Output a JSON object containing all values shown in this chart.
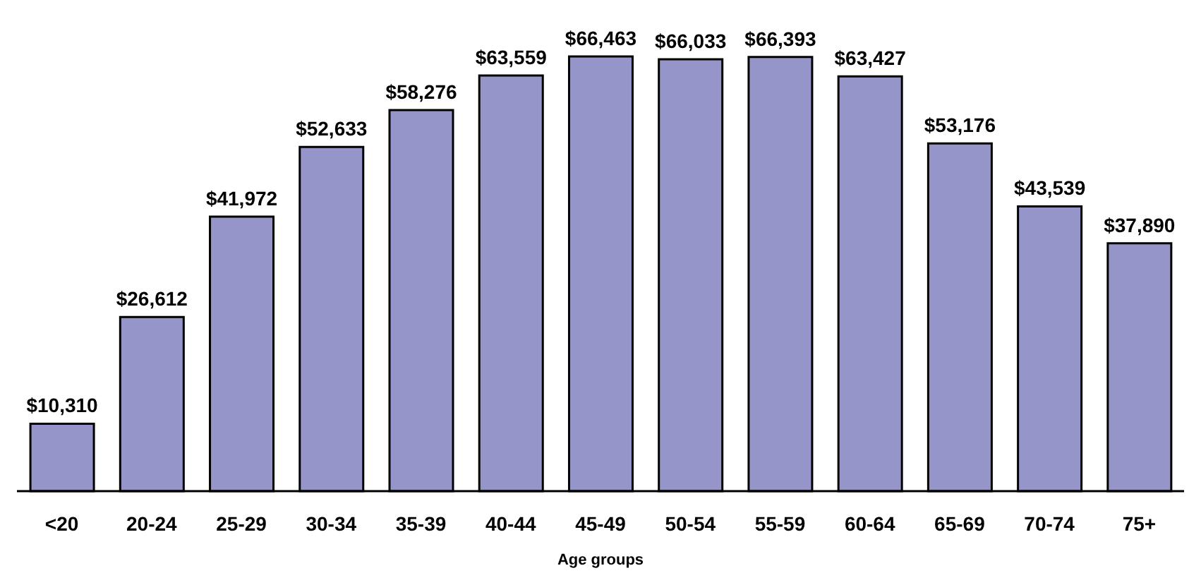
{
  "chart_data": {
    "type": "bar",
    "xlabel": "Age groups",
    "categories": [
      "<20",
      "20-24",
      "25-29",
      "30-34",
      "35-39",
      "40-44",
      "45-49",
      "50-54",
      "55-59",
      "60-64",
      "65-69",
      "70-74",
      "75+"
    ],
    "values": [
      10310,
      26612,
      41972,
      52633,
      58276,
      63559,
      66463,
      66033,
      66393,
      63427,
      53176,
      43539,
      37890
    ],
    "value_labels": [
      "$10,310",
      "$26,612",
      "$41,972",
      "$52,633",
      "$58,276",
      "$63,559",
      "$66,463",
      "$66,033",
      "$66,393",
      "$63,427",
      "$53,176",
      "$43,539",
      "$37,890"
    ],
    "color": "#9695c9",
    "grid": false,
    "legend": false
  }
}
